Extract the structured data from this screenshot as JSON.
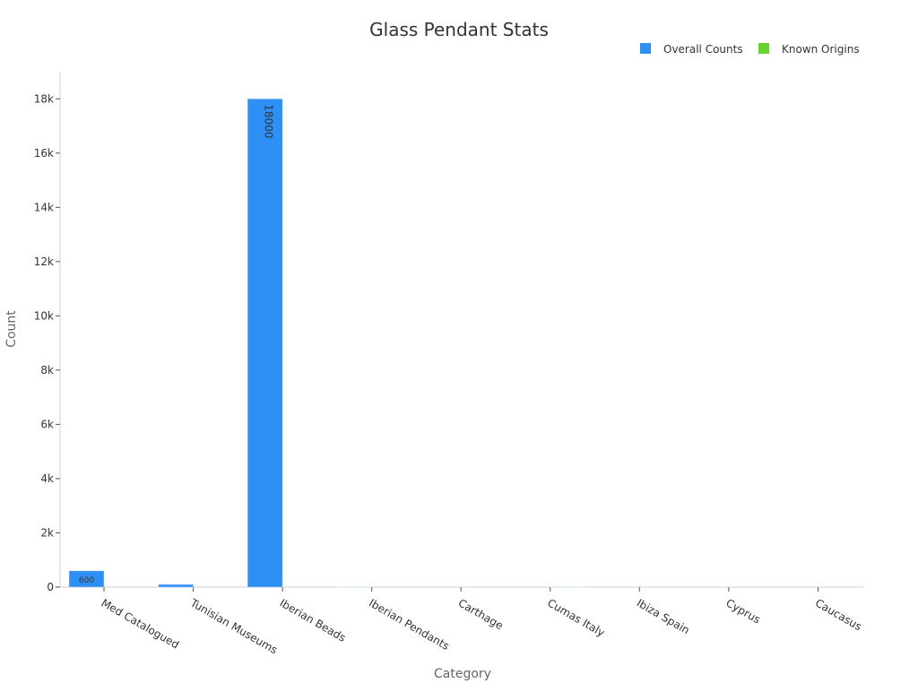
{
  "chart_data": {
    "type": "bar",
    "title": "Glass Pendant Stats",
    "xlabel": "Category",
    "ylabel": "Count",
    "categories": [
      "Med Catalogued",
      "Tunisian Museums",
      "Iberian Beads",
      "Iberian Pendants",
      "Carthage",
      "Cumas Italy",
      "Ibiza Spain",
      "Cyprus",
      "Caucasus"
    ],
    "series": [
      {
        "name": "Overall Counts",
        "color": "#2e8ff5",
        "values": [
          600,
          100,
          18000,
          10,
          0,
          0,
          0,
          0,
          0
        ]
      },
      {
        "name": "Known Origins",
        "color": "#66d42a",
        "values": [
          0,
          0,
          0,
          0,
          0,
          10,
          0,
          0,
          0
        ]
      }
    ],
    "data_labels": {
      "Med Catalogued": "600",
      "Iberian Beads": "18000"
    },
    "ylim": [
      0,
      19000
    ],
    "yticks": [
      0,
      2000,
      4000,
      6000,
      8000,
      10000,
      12000,
      14000,
      16000,
      18000
    ],
    "ytick_labels": [
      "0",
      "2k",
      "4k",
      "6k",
      "8k",
      "10k",
      "12k",
      "14k",
      "16k",
      "18k"
    ],
    "grid": false,
    "legend_position": "top-right"
  }
}
